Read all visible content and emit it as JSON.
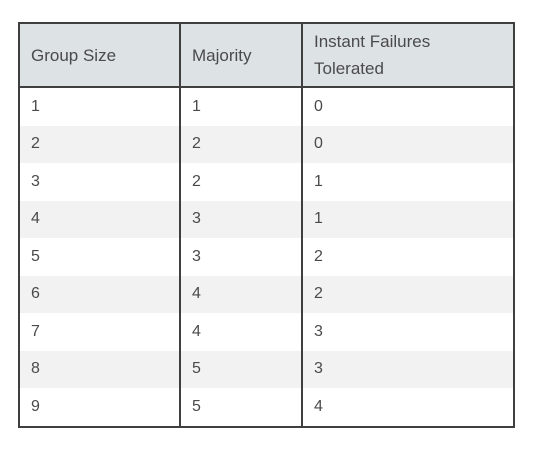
{
  "table": {
    "headers": [
      "Group Size",
      "Majority",
      "Instant Failures Tolerated"
    ],
    "rows": [
      [
        "1",
        "1",
        "0"
      ],
      [
        "2",
        "2",
        "0"
      ],
      [
        "3",
        "2",
        "1"
      ],
      [
        "4",
        "3",
        "1"
      ],
      [
        "5",
        "3",
        "2"
      ],
      [
        "6",
        "4",
        "2"
      ],
      [
        "7",
        "4",
        "3"
      ],
      [
        "8",
        "5",
        "3"
      ],
      [
        "9",
        "5",
        "4"
      ]
    ]
  },
  "colors": {
    "header_bg": "#dde2e4",
    "stripe_bg": "#f2f2f2",
    "border": "#3f3f3f",
    "text": "#4a4a4a"
  }
}
